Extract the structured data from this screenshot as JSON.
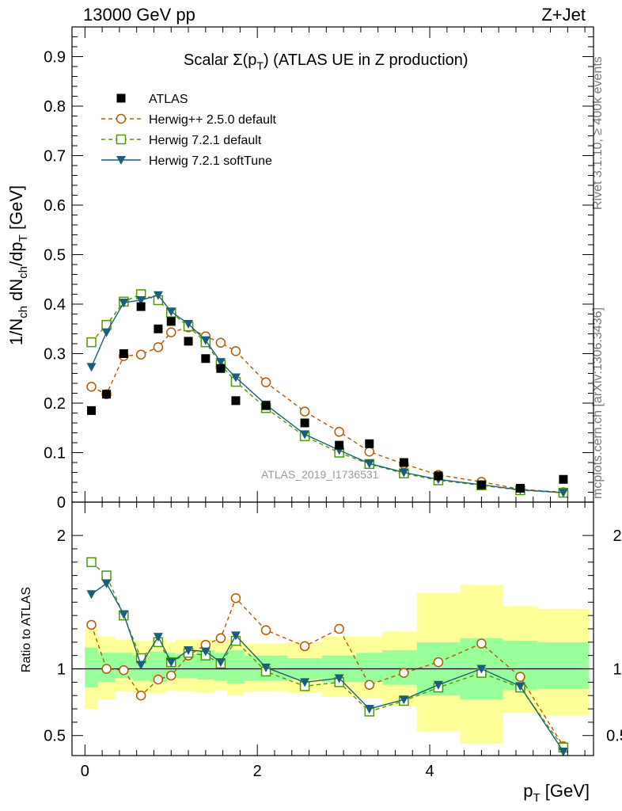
{
  "header": {
    "left": "13000 GeV pp",
    "right": "Z+Jet"
  },
  "side_text": {
    "rivet": "Rivet 3.1.10, ≥ 400k events",
    "mcplots": "mcplots.cern.ch [arXiv:1306.3436]"
  },
  "analysis_label": "ATLAS_2019_I1736531",
  "colors": {
    "data": "#000000",
    "herwigpp": "#b35900",
    "herwig_default": "#4d9900",
    "herwig_soft": "#1b5e7a",
    "band_inner": "#99ff99",
    "band_outer": "#ffff99"
  },
  "chart_data": [
    {
      "type": "scatter",
      "name": "main",
      "title_main": "Scalar Σ(p",
      "title_sub": "T",
      "title_rest": ") (ATLAS UE in Z production)",
      "ylabel": "1/N_ch dN_ch/dp_T [GeV]",
      "ylabel_parts": {
        "a": "1/N",
        "a_sub": "ch",
        "b": " dN",
        "b_sub": "ch",
        "c": "/dp",
        "c_sub": "T",
        "d": " [GeV]"
      },
      "xlim": [
        -0.15,
        5.9
      ],
      "ylim": [
        0,
        0.96
      ],
      "yticks": [
        {
          "v": 0,
          "label": "0"
        },
        {
          "v": 0.1,
          "label": "0.1"
        },
        {
          "v": 0.2,
          "label": "0.2"
        },
        {
          "v": 0.3,
          "label": "0.3"
        },
        {
          "v": 0.4,
          "label": "0.4"
        },
        {
          "v": 0.5,
          "label": "0.5"
        },
        {
          "v": 0.6,
          "label": "0.6"
        },
        {
          "v": 0.7,
          "label": "0.7"
        },
        {
          "v": 0.8,
          "label": "0.8"
        },
        {
          "v": 0.9,
          "label": "0.9"
        }
      ],
      "x": [
        0.075,
        0.25,
        0.45,
        0.65,
        0.85,
        1.0,
        1.2,
        1.4,
        1.575,
        1.75,
        2.1,
        2.55,
        2.95,
        3.3,
        3.7,
        4.1,
        4.6,
        5.05,
        5.55
      ],
      "series": [
        {
          "name": "ATLAS",
          "style": "data",
          "values": [
            0.185,
            0.218,
            0.3,
            0.395,
            0.35,
            0.365,
            0.325,
            0.29,
            0.27,
            0.205,
            0.195,
            0.16,
            0.115,
            0.118,
            0.08,
            0.053,
            0.035,
            0.028,
            0.046
          ]
        },
        {
          "name": "Herwig++ 2.5.0 default",
          "style": "circle-dashed",
          "values": [
            0.233,
            0.218,
            0.295,
            0.298,
            0.313,
            0.343,
            0.353,
            0.335,
            0.322,
            0.305,
            0.242,
            0.183,
            0.142,
            0.102,
            0.077,
            0.055,
            0.041,
            0.026,
            0.02
          ]
        },
        {
          "name": "Herwig 7.2.1 default",
          "style": "square-dashed",
          "values": [
            0.323,
            0.358,
            0.405,
            0.42,
            0.408,
            0.383,
            0.355,
            0.323,
            0.278,
            0.243,
            0.19,
            0.133,
            0.1,
            0.077,
            0.058,
            0.044,
            0.034,
            0.024,
            0.019
          ]
        },
        {
          "name": "Herwig 7.2.1 softTune",
          "style": "triangle-solid",
          "values": [
            0.273,
            0.343,
            0.403,
            0.408,
            0.418,
            0.385,
            0.36,
            0.327,
            0.283,
            0.252,
            0.197,
            0.137,
            0.105,
            0.078,
            0.06,
            0.046,
            0.035,
            0.025,
            0.019
          ]
        }
      ]
    },
    {
      "type": "scatter",
      "name": "ratio",
      "ylabel": "Ratio to ATLAS",
      "xlabel_main": "p",
      "xlabel_sub": "T",
      "xlabel_rest": " [GeV]",
      "xlim": [
        -0.15,
        5.9
      ],
      "ylim": [
        0.35,
        2.25
      ],
      "yticks": [
        {
          "v": 0.5,
          "label": "0.5"
        },
        {
          "v": 1,
          "label": "1"
        },
        {
          "v": 2,
          "label": "2"
        }
      ],
      "xticks": [
        {
          "v": 0,
          "label": "0"
        },
        {
          "v": 2,
          "label": "2"
        },
        {
          "v": 4,
          "label": "4"
        }
      ],
      "bins": [
        [
          0.0,
          0.15,
          0.86,
          1.16,
          0.7,
          1.3
        ],
        [
          0.15,
          0.35,
          0.9,
          1.12,
          0.77,
          1.24
        ],
        [
          0.35,
          0.55,
          0.93,
          1.12,
          0.83,
          1.22
        ],
        [
          0.55,
          0.75,
          0.91,
          1.1,
          0.82,
          1.21
        ],
        [
          0.75,
          0.95,
          0.9,
          1.13,
          0.82,
          1.22
        ],
        [
          0.95,
          1.05,
          0.92,
          1.12,
          0.84,
          1.2
        ],
        [
          1.05,
          1.3,
          0.93,
          1.11,
          0.83,
          1.22
        ],
        [
          1.3,
          1.5,
          0.92,
          1.14,
          0.82,
          1.22
        ],
        [
          1.5,
          1.65,
          0.91,
          1.12,
          0.84,
          1.2
        ],
        [
          1.65,
          1.85,
          0.89,
          1.14,
          0.8,
          1.22
        ],
        [
          1.85,
          2.35,
          0.91,
          1.1,
          0.83,
          1.19
        ],
        [
          2.35,
          2.75,
          0.92,
          1.08,
          0.82,
          1.2
        ],
        [
          2.75,
          3.15,
          0.9,
          1.1,
          0.79,
          1.24
        ],
        [
          3.15,
          3.45,
          0.9,
          1.12,
          0.78,
          1.24
        ],
        [
          3.45,
          3.85,
          0.88,
          1.14,
          0.72,
          1.28
        ],
        [
          3.85,
          4.35,
          0.8,
          1.2,
          0.53,
          1.57
        ],
        [
          4.35,
          4.85,
          0.77,
          1.23,
          0.44,
          1.63
        ],
        [
          4.85,
          5.25,
          0.84,
          1.21,
          0.67,
          1.47
        ],
        [
          5.25,
          5.85,
          0.85,
          1.2,
          0.65,
          1.45
        ]
      ],
      "series": [
        {
          "name": "Herwig++ 2.5.0 default",
          "style": "circle-dashed",
          "values": [
            1.33,
            1.0,
            0.99,
            0.8,
            0.92,
            0.95,
            1.1,
            1.18,
            1.23,
            1.53,
            1.29,
            1.17,
            1.3,
            0.88,
            0.97,
            1.05,
            1.19,
            0.94,
            0.42
          ]
        },
        {
          "name": "Herwig 7.2.1 default",
          "style": "square-dashed",
          "values": [
            1.8,
            1.7,
            1.4,
            1.08,
            1.2,
            1.05,
            1.12,
            1.1,
            1.04,
            1.21,
            0.98,
            0.87,
            0.9,
            0.68,
            0.76,
            0.86,
            0.97,
            0.86,
            0.41
          ]
        },
        {
          "name": "Herwig 7.2.1 softTune",
          "style": "triangle-solid",
          "values": [
            1.56,
            1.64,
            1.41,
            1.03,
            1.24,
            1.05,
            1.14,
            1.13,
            1.05,
            1.25,
            1.01,
            0.9,
            0.93,
            0.7,
            0.77,
            0.88,
            1.0,
            0.87,
            0.38
          ]
        }
      ]
    }
  ]
}
